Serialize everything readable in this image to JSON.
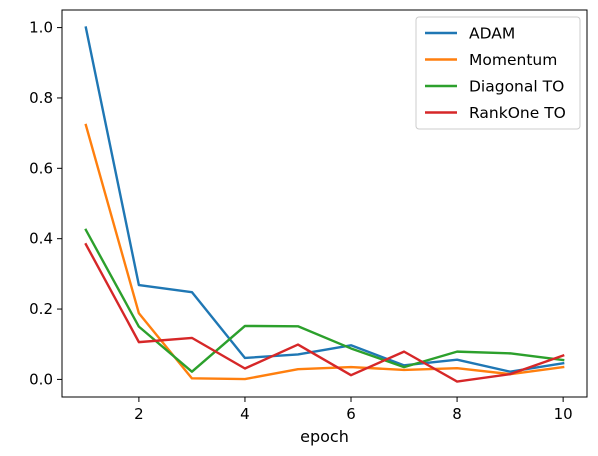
{
  "chart_data": {
    "type": "line",
    "title": "",
    "xlabel": "epoch",
    "ylabel": "",
    "x": [
      1,
      2,
      3,
      4,
      5,
      6,
      7,
      8,
      9,
      10
    ],
    "xlim": [
      0.55,
      10.45
    ],
    "ylim": [
      -0.05,
      1.05
    ],
    "xticks": [
      2,
      4,
      6,
      8,
      10
    ],
    "yticks": [
      0.0,
      0.2,
      0.4,
      0.6,
      0.8,
      1.0
    ],
    "xtick_labels": [
      "2",
      "4",
      "6",
      "8",
      "10"
    ],
    "ytick_labels": [
      "0.0",
      "0.2",
      "0.4",
      "0.6",
      "0.8",
      "1.0"
    ],
    "grid": false,
    "legend_position": "top-right",
    "series": [
      {
        "name": "ADAM",
        "color": "#1f77b4",
        "values": [
          1.0,
          0.268,
          0.248,
          0.061,
          0.071,
          0.097,
          0.04,
          0.056,
          0.022,
          0.046
        ]
      },
      {
        "name": "Momentum",
        "color": "#ff7f0e",
        "values": [
          0.723,
          0.188,
          0.003,
          0.001,
          0.029,
          0.035,
          0.027,
          0.032,
          0.015,
          0.035
        ]
      },
      {
        "name": "Diagonal TO",
        "color": "#2ca02c",
        "values": [
          0.425,
          0.15,
          0.022,
          0.152,
          0.151,
          0.088,
          0.035,
          0.079,
          0.074,
          0.055
        ]
      },
      {
        "name": "RankOne TO",
        "color": "#d62728",
        "values": [
          0.384,
          0.106,
          0.118,
          0.031,
          0.099,
          0.012,
          0.079,
          -0.006,
          0.015,
          0.068
        ]
      }
    ]
  }
}
